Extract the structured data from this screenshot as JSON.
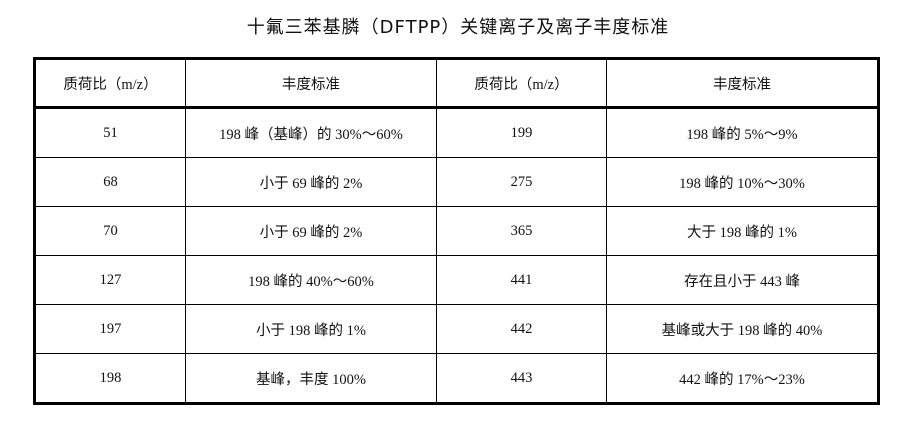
{
  "title": "十氟三苯基膦（DFTPP）关键离子及离子丰度标准",
  "table": {
    "headers": [
      "质荷比（m/z）",
      "丰度标准",
      "质荷比（m/z）",
      "丰度标准"
    ],
    "rows": [
      [
        "51",
        "198 峰（基峰）的 30%～60%",
        "199",
        "198 峰的 5%～9%"
      ],
      [
        "68",
        "小于 69 峰的 2%",
        "275",
        "198 峰的 10%～30%"
      ],
      [
        "70",
        "小于 69 峰的 2%",
        "365",
        "大于 198 峰的 1%"
      ],
      [
        "127",
        "198 峰的 40%～60%",
        "441",
        "存在且小于 443 峰"
      ],
      [
        "197",
        "小于 198 峰的 1%",
        "442",
        "基峰或大于 198 峰的 40%"
      ],
      [
        "198",
        "基峰，丰度 100%",
        "443",
        "442 峰的 17%～23%"
      ]
    ]
  }
}
